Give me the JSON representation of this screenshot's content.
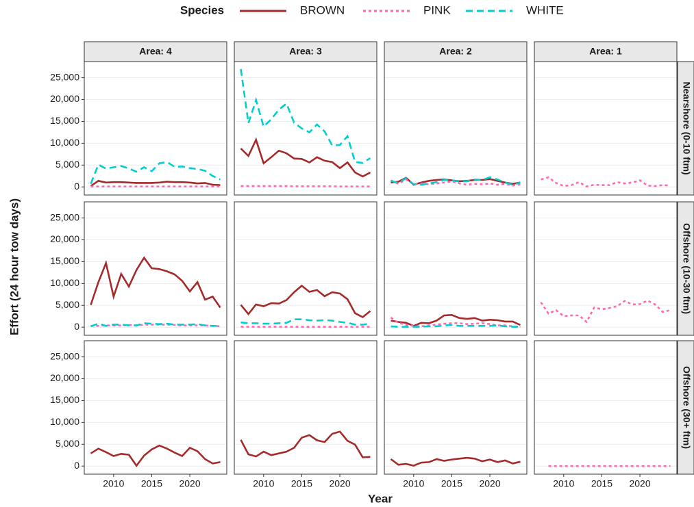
{
  "chart_data": {
    "type": "line",
    "legend_title": "Species",
    "x_label": "Year",
    "y_label": "Effort (24 hour tow days)",
    "series": [
      {
        "name": "BROWN",
        "color": "#a52a2a",
        "dash": "solid"
      },
      {
        "name": "PINK",
        "color": "#ff69b4",
        "dash": "dotted"
      },
      {
        "name": "WHITE",
        "color": "#00ced1",
        "dash": "dashed"
      }
    ],
    "columns": [
      "Area: 4",
      "Area: 3",
      "Area: 2",
      "Area: 1"
    ],
    "rows": [
      "Nearshore (0-10 ftm)",
      "Offshore (10-30 ftm)",
      "Offshore (30+ ftm)"
    ],
    "x": [
      2007,
      2008,
      2009,
      2010,
      2011,
      2012,
      2013,
      2014,
      2015,
      2016,
      2017,
      2018,
      2019,
      2020,
      2021,
      2022,
      2023,
      2024
    ],
    "xlim": [
      2006.15,
      2024.85
    ],
    "xticks": [
      2010,
      2015,
      2020
    ],
    "ylim": [
      -1850,
      28700
    ],
    "yticks": [
      0,
      {
        "value": 5000,
        "label": "5,000"
      },
      {
        "value": 10000,
        "label": "10,000"
      },
      {
        "value": 15000,
        "label": "15,000"
      },
      {
        "value": 20000,
        "label": "20,000"
      },
      {
        "value": 25000,
        "label": "25,000"
      }
    ],
    "grid": true,
    "panels": [
      {
        "values": [
          [
            200,
            1400,
            1000,
            1100,
            1100,
            1000,
            900,
            900,
            900,
            1000,
            1200,
            1100,
            1100,
            1000,
            800,
            900,
            500,
            400
          ],
          [
            100,
            100,
            100,
            100,
            100,
            100,
            100,
            100,
            100,
            100,
            100,
            100,
            100,
            100,
            100,
            100,
            100,
            100
          ],
          [
            700,
            5100,
            4200,
            4500,
            4800,
            4200,
            3500,
            4500,
            3600,
            5400,
            5700,
            4600,
            4700,
            4300,
            4100,
            3700,
            2500,
            1700
          ]
        ]
      },
      {
        "values": [
          [
            8800,
            7100,
            10800,
            5400,
            6800,
            8300,
            7700,
            6500,
            6400,
            5600,
            6800,
            6000,
            5700,
            4300,
            5600,
            3300,
            2400,
            3300
          ],
          [
            200,
            200,
            200,
            200,
            200,
            200,
            200,
            150,
            150,
            150,
            150,
            150,
            150,
            100,
            100,
            100,
            100,
            100
          ],
          [
            27000,
            14600,
            19900,
            13800,
            15500,
            17700,
            19100,
            14700,
            13400,
            12500,
            14300,
            12700,
            9500,
            9600,
            11600,
            5700,
            5500,
            6600
          ]
        ]
      },
      {
        "values": [
          [
            1000,
            1200,
            2100,
            500,
            1000,
            1400,
            1600,
            1700,
            1500,
            1300,
            1400,
            1600,
            1600,
            1800,
            1400,
            1000,
            700,
            1000
          ],
          [
            1500,
            700,
            1700,
            600,
            800,
            600,
            800,
            1000,
            1300,
            800,
            500,
            700,
            600,
            800,
            500,
            700,
            300,
            600
          ],
          [
            1400,
            900,
            2000,
            600,
            500,
            800,
            1100,
            1600,
            1500,
            1200,
            1300,
            1700,
            1600,
            2200,
            1700,
            1000,
            500,
            1000
          ]
        ]
      },
      {
        "values": [
          [
            null,
            null,
            null,
            null,
            null,
            null,
            null,
            null,
            null,
            null,
            null,
            null,
            null,
            null,
            null,
            null,
            null,
            null
          ],
          [
            1700,
            2200,
            900,
            200,
            400,
            1100,
            100,
            500,
            400,
            400,
            1100,
            800,
            1000,
            1500,
            300,
            200,
            400,
            300
          ],
          [
            null,
            null,
            null,
            null,
            null,
            null,
            null,
            null,
            null,
            null,
            null,
            null,
            null,
            null,
            null,
            null,
            null,
            null
          ]
        ]
      },
      {
        "values": [
          [
            5100,
            10300,
            14700,
            7000,
            12200,
            9300,
            13100,
            15900,
            13500,
            13300,
            12800,
            12100,
            10600,
            8200,
            10300,
            6300,
            7000,
            4500
          ],
          [
            300,
            300,
            400,
            400,
            400,
            500,
            400,
            600,
            600,
            600,
            600,
            500,
            400,
            400,
            400,
            400,
            300,
            200
          ],
          [
            200,
            800,
            300,
            600,
            600,
            400,
            400,
            900,
            800,
            700,
            800,
            600,
            600,
            600,
            700,
            400,
            300,
            300
          ]
        ]
      },
      {
        "values": [
          [
            5100,
            3000,
            5200,
            4800,
            5500,
            5400,
            6200,
            8000,
            9500,
            8100,
            8500,
            7100,
            8000,
            7700,
            6400,
            3200,
            2300,
            3700
          ],
          [
            100,
            100,
            100,
            100,
            100,
            100,
            100,
            100,
            100,
            100,
            100,
            100,
            100,
            100,
            100,
            100,
            100,
            100
          ],
          [
            1100,
            900,
            900,
            800,
            800,
            900,
            1000,
            1800,
            1800,
            1600,
            1500,
            1600,
            1500,
            1200,
            1000,
            600,
            600,
            800
          ]
        ]
      },
      {
        "values": [
          [
            1500,
            1200,
            1000,
            300,
            1000,
            900,
            1500,
            2700,
            2800,
            2100,
            1900,
            2100,
            1500,
            1700,
            1600,
            1300,
            1300,
            500
          ],
          [
            2200,
            1000,
            500,
            300,
            200,
            400,
            600,
            800,
            900,
            900,
            700,
            800,
            900,
            700,
            400,
            400,
            200,
            100
          ],
          [
            200,
            100,
            100,
            100,
            100,
            200,
            200,
            400,
            500,
            300,
            300,
            300,
            300,
            300,
            400,
            200,
            100,
            100
          ]
        ]
      },
      {
        "values": [
          [
            null,
            null,
            null,
            null,
            null,
            null,
            null,
            null,
            null,
            null,
            null,
            null,
            null,
            null,
            null,
            null,
            null,
            null
          ],
          [
            5700,
            3100,
            3900,
            2500,
            2700,
            2700,
            1200,
            4500,
            4100,
            4400,
            4800,
            6000,
            5200,
            5300,
            6100,
            5200,
            3500,
            3900
          ],
          [
            null,
            null,
            null,
            null,
            null,
            null,
            null,
            null,
            null,
            null,
            null,
            null,
            null,
            null,
            null,
            null,
            null,
            null
          ]
        ]
      },
      {
        "values": [
          [
            2900,
            4000,
            3200,
            2300,
            2800,
            2600,
            100,
            2400,
            3800,
            4700,
            4000,
            3100,
            2300,
            4200,
            3400,
            1600,
            600,
            900
          ],
          [
            null,
            null,
            null,
            null,
            null,
            null,
            null,
            null,
            null,
            null,
            null,
            null,
            null,
            null,
            null,
            null,
            null,
            null
          ],
          [
            null,
            null,
            null,
            null,
            null,
            null,
            null,
            null,
            null,
            null,
            null,
            null,
            null,
            null,
            null,
            null,
            null,
            null
          ]
        ]
      },
      {
        "values": [
          [
            6000,
            2700,
            2200,
            3300,
            2500,
            2900,
            3300,
            4200,
            6500,
            7100,
            5900,
            5500,
            7400,
            7900,
            5800,
            4900,
            2000,
            2100
          ],
          [
            null,
            null,
            null,
            null,
            null,
            null,
            null,
            null,
            null,
            null,
            null,
            null,
            null,
            null,
            null,
            null,
            null,
            null
          ],
          [
            null,
            null,
            null,
            null,
            null,
            null,
            null,
            null,
            null,
            null,
            null,
            null,
            null,
            null,
            null,
            null,
            null,
            null
          ]
        ]
      },
      {
        "values": [
          [
            1600,
            300,
            500,
            100,
            800,
            900,
            1600,
            1200,
            1500,
            1700,
            1900,
            1700,
            1100,
            1500,
            900,
            1300,
            600,
            1000
          ],
          [
            null,
            null,
            null,
            null,
            null,
            null,
            null,
            null,
            null,
            null,
            null,
            null,
            null,
            null,
            null,
            null,
            null,
            null
          ],
          [
            null,
            null,
            null,
            null,
            null,
            null,
            null,
            null,
            null,
            null,
            null,
            null,
            null,
            null,
            null,
            null,
            null,
            null
          ]
        ]
      },
      {
        "values": [
          [
            null,
            null,
            null,
            null,
            null,
            null,
            null,
            null,
            null,
            null,
            null,
            null,
            null,
            null,
            null,
            null,
            null,
            null
          ],
          [
            null,
            0,
            0,
            0,
            0,
            0,
            0,
            0,
            0,
            0,
            0,
            0,
            0,
            0,
            0,
            0,
            0,
            0
          ],
          [
            null,
            null,
            null,
            null,
            null,
            null,
            null,
            null,
            null,
            null,
            null,
            null,
            null,
            null,
            null,
            null,
            null,
            null
          ]
        ]
      }
    ]
  }
}
